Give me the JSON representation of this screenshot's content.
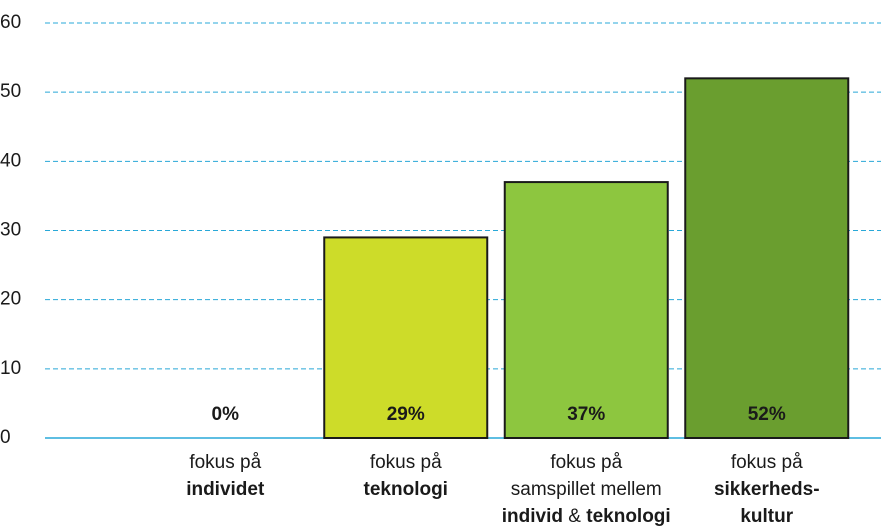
{
  "chart_data": {
    "type": "bar",
    "categories": [
      [
        "fokus på",
        "individet"
      ],
      [
        "fokus på",
        "teknologi"
      ],
      [
        "fokus på",
        "samspillet mellem",
        "individ & teknologi"
      ],
      [
        "fokus på",
        "sikkerheds-",
        "kultur"
      ]
    ],
    "values": [
      0,
      29,
      37,
      52
    ],
    "value_labels": [
      "0%",
      "29%",
      "37%",
      "52%"
    ],
    "colors": [
      "#cddc29",
      "#cddc29",
      "#8dc63f",
      "#6a9e2f"
    ],
    "ylim": [
      0,
      60
    ],
    "yticks": [
      0,
      10,
      20,
      30,
      40,
      50,
      60
    ],
    "grid": true
  }
}
